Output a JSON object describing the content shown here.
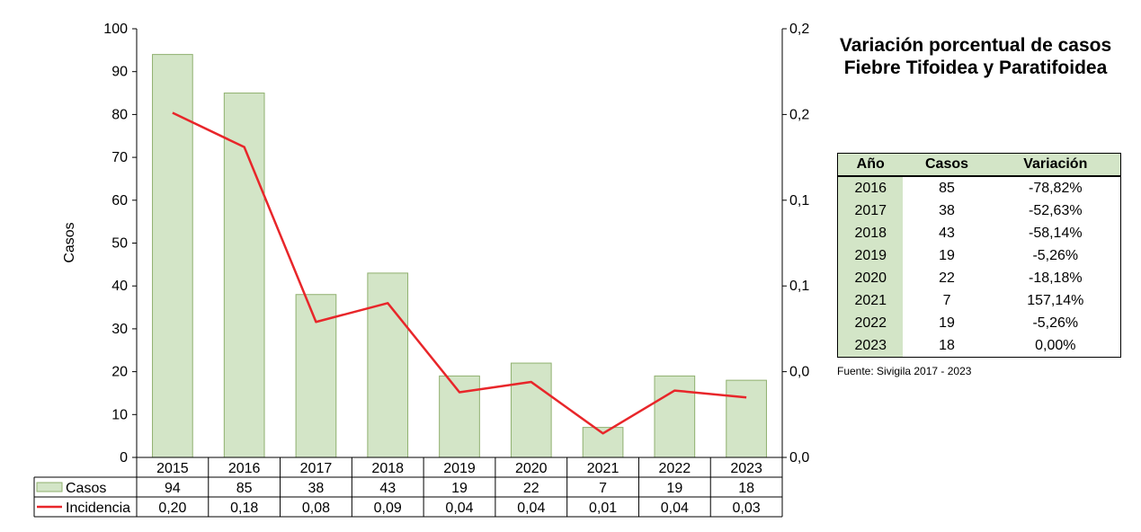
{
  "chart_data": {
    "type": "bar",
    "categories": [
      "2015",
      "2016",
      "2017",
      "2018",
      "2019",
      "2020",
      "2021",
      "2022",
      "2023"
    ],
    "series": [
      {
        "name": "Casos",
        "type": "bar",
        "axis": "left",
        "color": "#d3e5c7",
        "edge": "#8fb06e",
        "values": [
          94,
          85,
          38,
          43,
          19,
          22,
          7,
          19,
          18
        ]
      },
      {
        "name": "Incidencia",
        "type": "line",
        "axis": "right",
        "color": "#e8262a",
        "values": [
          0.2,
          0.18,
          0.08,
          0.09,
          0.04,
          0.04,
          0.01,
          0.04,
          0.03
        ],
        "plotted": [
          0.201,
          0.181,
          0.079,
          0.09,
          0.038,
          0.044,
          0.014,
          0.039,
          0.035
        ]
      }
    ],
    "ylabel": "Casos",
    "y2label": "Incidencia",
    "ylim": [
      0,
      100
    ],
    "y2lim": [
      0,
      0.25
    ],
    "yticks": [
      "0",
      "10",
      "20",
      "30",
      "40",
      "50",
      "60",
      "70",
      "80",
      "90",
      "100"
    ],
    "y2ticks": [
      "0,00",
      "0,05",
      "0,10",
      "0,15",
      "0,20",
      "0,25"
    ],
    "data_table": {
      "casos": [
        "94",
        "85",
        "38",
        "43",
        "19",
        "22",
        "7",
        "19",
        "18"
      ],
      "incidencia": [
        "0,20",
        "0,18",
        "0,08",
        "0,09",
        "0,04",
        "0,04",
        "0,01",
        "0,04",
        "0,03"
      ]
    },
    "grid": false
  },
  "title": "Variación porcentual de casos Fiebre Tifoidea y Paratifoidea",
  "variation_table": {
    "headers": [
      "Año",
      "Casos",
      "Variación"
    ],
    "rows": [
      [
        "2016",
        "85",
        "-78,82%"
      ],
      [
        "2017",
        "38",
        "-52,63%"
      ],
      [
        "2018",
        "43",
        "-58,14%"
      ],
      [
        "2019",
        "19",
        "-5,26%"
      ],
      [
        "2020",
        "22",
        "-18,18%"
      ],
      [
        "2021",
        "7",
        "157,14%"
      ],
      [
        "2022",
        "19",
        "-5,26%"
      ],
      [
        "2023",
        "18",
        "0,00%"
      ]
    ]
  },
  "source": "Fuente: Sivigila 2017 - 2023"
}
